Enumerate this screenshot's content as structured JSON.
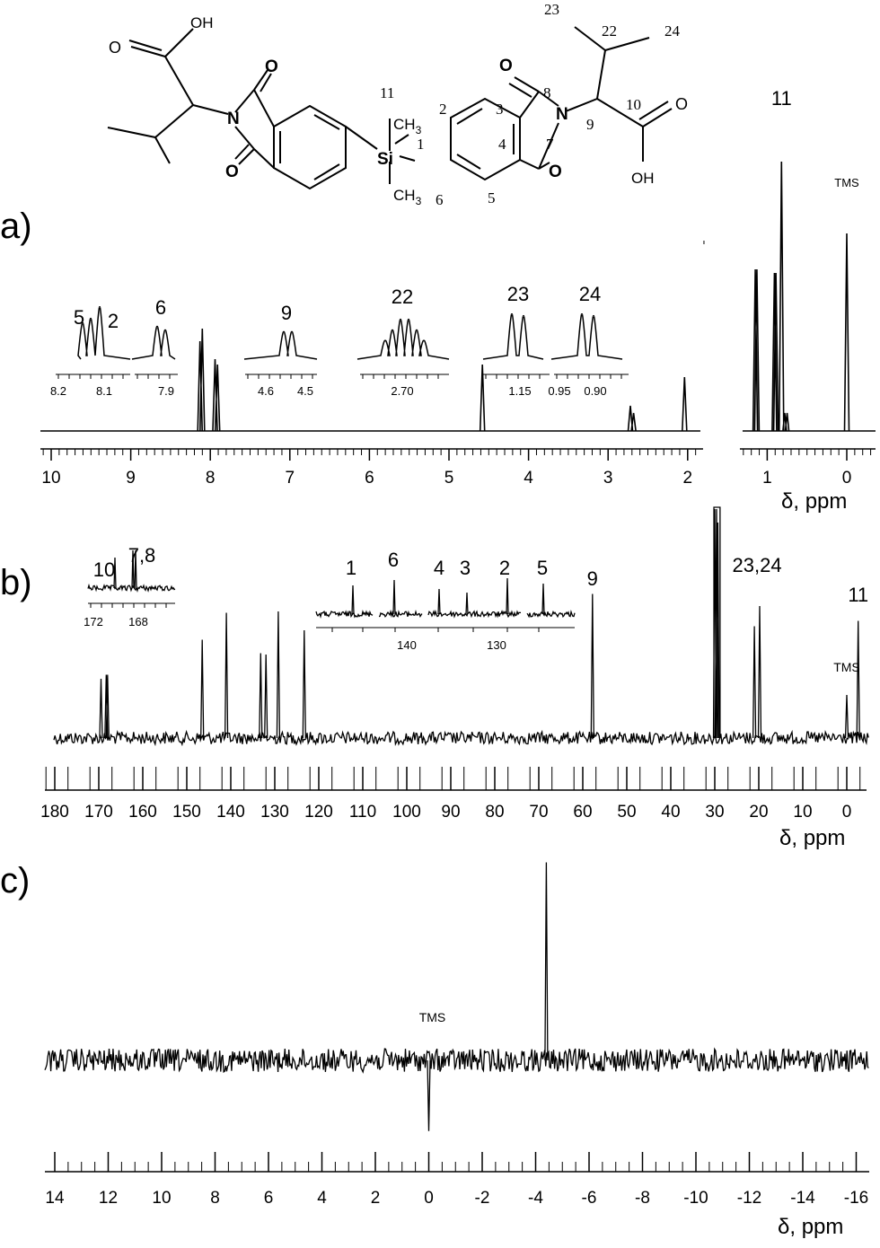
{
  "structure": {
    "atom_labels": {
      "oh_left": "OH",
      "o_acid_left": "O",
      "n_left": "N",
      "o_top_left": "O",
      "o_bottom_left": "O",
      "si": "Si",
      "ch3_top": "CH",
      "ch3_bottom": "CH",
      "sub3": "3",
      "o_top_right": "O",
      "o_bottom_right": "O",
      "n_right": "N",
      "o_acid_right": "O",
      "oh_right": "OH"
    },
    "numbering": {
      "n1": "1",
      "n2": "2",
      "n3": "3",
      "n4": "4",
      "n5": "5",
      "n6": "6",
      "n7": "7",
      "n8": "8",
      "n9": "9",
      "n10": "10",
      "n11": "11",
      "n22": "22",
      "n23": "23",
      "n24": "24"
    }
  },
  "chart_data": [
    {
      "type": "line",
      "panel": "a)",
      "xlabel": "δ, ppm",
      "xlim": [
        10.0,
        -0.35
      ],
      "x_ticks": [
        10,
        9,
        8,
        7,
        6,
        5,
        4,
        3,
        2,
        1,
        0
      ],
      "axis_break": [
        1.75,
        1.4
      ],
      "peaks": [
        {
          "x": 8.13,
          "h": 0.5
        },
        {
          "x": 8.1,
          "h": 0.57
        },
        {
          "x": 7.94,
          "h": 0.4
        },
        {
          "x": 7.91,
          "h": 0.37
        },
        {
          "x": 4.58,
          "h": 0.37
        },
        {
          "x": 2.72,
          "h": 0.14
        },
        {
          "x": 2.68,
          "h": 0.1
        },
        {
          "x": 2.04,
          "h": 0.3
        },
        {
          "x": 1.15,
          "h": 0.9
        },
        {
          "x": 1.13,
          "h": 0.9
        },
        {
          "x": 0.91,
          "h": 0.88
        },
        {
          "x": 0.89,
          "h": 0.88
        },
        {
          "x": 0.82,
          "h": 1.5
        },
        {
          "x": 0.0,
          "h": 1.1
        }
      ],
      "annotations": [
        {
          "text": "11",
          "x": 0.82
        },
        {
          "text": "TMS",
          "x": 0.0
        }
      ],
      "insets": [
        {
          "labels": [
            "5",
            "2"
          ],
          "peaks": [
            8.14,
            8.12,
            8.1
          ],
          "ticks": [
            "8.2",
            "8.1"
          ]
        },
        {
          "labels": [
            "6"
          ],
          "peaks": [
            7.94,
            7.92
          ],
          "ticks": [
            "7.9"
          ]
        },
        {
          "labels": [
            "9"
          ],
          "peaks": [
            4.58,
            4.56
          ],
          "ticks": [
            "4.6",
            "4.5"
          ]
        },
        {
          "labels": [
            "22"
          ],
          "peaks": [
            2.74,
            2.72,
            2.7,
            2.68,
            2.66
          ],
          "ticks": [
            "2.70"
          ]
        },
        {
          "labels": [
            "23"
          ],
          "peaks": [
            1.16,
            1.14
          ],
          "ticks": [
            "1.15"
          ]
        },
        {
          "labels": [
            "24"
          ],
          "peaks": [
            0.91,
            0.89
          ],
          "ticks": [
            "0.95",
            "0.90"
          ]
        }
      ]
    },
    {
      "type": "line",
      "panel": "b)",
      "xlabel": "δ, ppm",
      "xlim": [
        182,
        -4
      ],
      "x_ticks": [
        180,
        170,
        160,
        150,
        140,
        130,
        120,
        110,
        100,
        90,
        80,
        70,
        60,
        50,
        40,
        30,
        20,
        10,
        0
      ],
      "peaks": [
        {
          "x": 169.5,
          "h": 0.44
        },
        {
          "x": 168.3,
          "h": 0.47
        },
        {
          "x": 168.0,
          "h": 0.47
        },
        {
          "x": 146.5,
          "h": 0.73
        },
        {
          "x": 141.0,
          "h": 0.93
        },
        {
          "x": 133.2,
          "h": 0.63
        },
        {
          "x": 132.0,
          "h": 0.62
        },
        {
          "x": 129.2,
          "h": 0.94
        },
        {
          "x": 123.3,
          "h": 0.8
        },
        {
          "x": 57.8,
          "h": 1.07
        },
        {
          "x": 30.0,
          "h": 1.7
        },
        {
          "x": 29.6,
          "h": 1.7
        },
        {
          "x": 29.3,
          "h": 1.6
        },
        {
          "x": 21.0,
          "h": 0.83
        },
        {
          "x": 19.8,
          "h": 0.98
        },
        {
          "x": 0.0,
          "h": 0.32
        },
        {
          "x": -2.6,
          "h": 0.87
        }
      ],
      "annotations": [
        {
          "text": "9",
          "x": 57.8
        },
        {
          "text": "23,24",
          "x": 20.4
        },
        {
          "text": "TMS",
          "x": 0.0
        },
        {
          "text": "11",
          "x": -2.6
        }
      ],
      "insets": [
        {
          "labels": [
            "10",
            "7,8"
          ],
          "ticks": [
            "172",
            "168"
          ]
        },
        {
          "labels": [
            "1",
            "6",
            "4",
            "3",
            "2",
            "5"
          ],
          "ticks": [
            "140",
            "130"
          ]
        }
      ]
    },
    {
      "type": "line",
      "panel": "c)",
      "xlabel": "δ, ppm",
      "xlim": [
        14.3,
        -16.4
      ],
      "x_ticks": [
        14,
        12,
        10,
        8,
        6,
        4,
        2,
        0,
        -2,
        -4,
        -6,
        -8,
        -10,
        -12,
        -14,
        -16
      ],
      "peaks": [
        {
          "x": -4.4,
          "h": 2.1
        },
        {
          "x": 0.0,
          "h": -0.75
        }
      ],
      "annotations": [
        {
          "text": "TMS",
          "x": 0.0
        }
      ]
    }
  ]
}
